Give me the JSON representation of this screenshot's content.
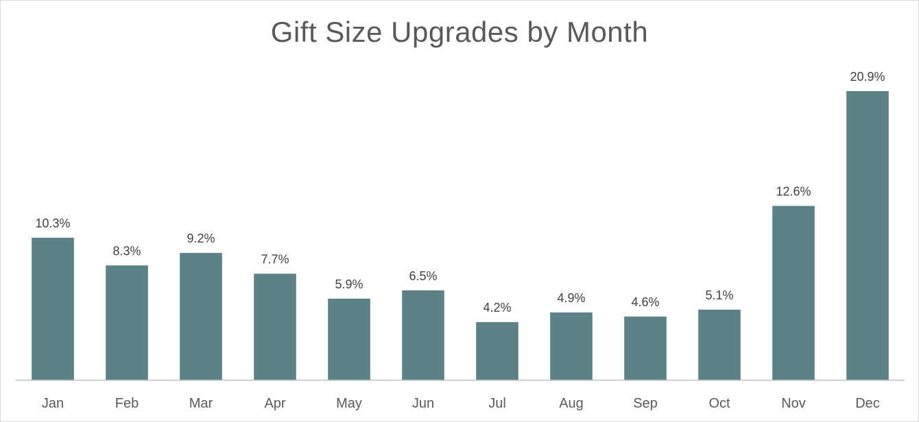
{
  "chart_data": {
    "type": "bar",
    "title": "Gift Size Upgrades by Month",
    "xlabel": "",
    "ylabel": "",
    "categories": [
      "Jan",
      "Feb",
      "Mar",
      "Apr",
      "May",
      "Jun",
      "Jul",
      "Aug",
      "Sep",
      "Oct",
      "Nov",
      "Dec"
    ],
    "values": [
      10.3,
      8.3,
      9.2,
      7.7,
      5.9,
      6.5,
      4.2,
      4.9,
      4.6,
      5.1,
      12.6,
      20.9
    ],
    "data_labels": [
      "10.3%",
      "8.3%",
      "9.2%",
      "7.7%",
      "5.9%",
      "6.5%",
      "4.2%",
      "4.9%",
      "4.6%",
      "5.1%",
      "12.6%",
      "20.9%"
    ],
    "ylim": [
      0,
      21
    ],
    "grid": false,
    "legend": "none",
    "bar_color": "#5a8287"
  }
}
